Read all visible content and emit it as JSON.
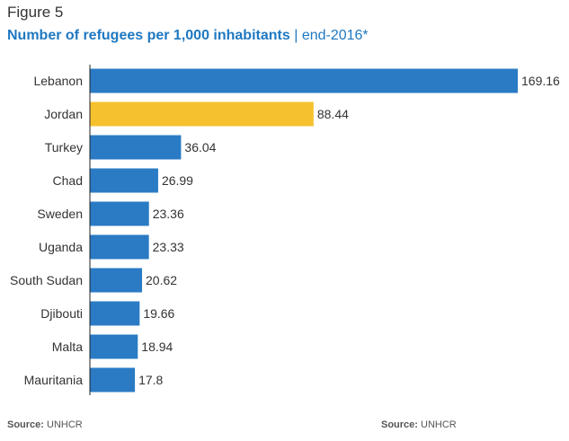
{
  "figure_label": "Figure 5",
  "title_main": "Number of refugees per 1,000 inhabitants",
  "title_separator": "|",
  "title_sub": "end-2016*",
  "source_label": "Source:",
  "source_value": "UNHCR",
  "source_right_label": "Source:",
  "source_right_value": "UNHCR",
  "colors": {
    "bar_default": "#2a7bc4",
    "bar_highlight": "#f5c12e",
    "axis": "#222222",
    "title": "#1f78c1"
  },
  "chart_data": {
    "type": "bar",
    "orientation": "horizontal",
    "categories": [
      "Lebanon",
      "Jordan",
      "Turkey",
      "Chad",
      "Sweden",
      "Uganda",
      "South Sudan",
      "Djibouti",
      "Malta",
      "Mauritania"
    ],
    "values": [
      169.16,
      88.44,
      36.04,
      26.99,
      23.36,
      23.33,
      20.62,
      19.66,
      18.94,
      17.8
    ],
    "value_labels": [
      "169.16",
      "88.44",
      "36.04",
      "26.99",
      "23.36",
      "23.33",
      "20.62",
      "19.66",
      "18.94",
      "17.8"
    ],
    "highlight_index": 1,
    "xlim": [
      0,
      169.16
    ],
    "grid": false,
    "legend": "none"
  }
}
